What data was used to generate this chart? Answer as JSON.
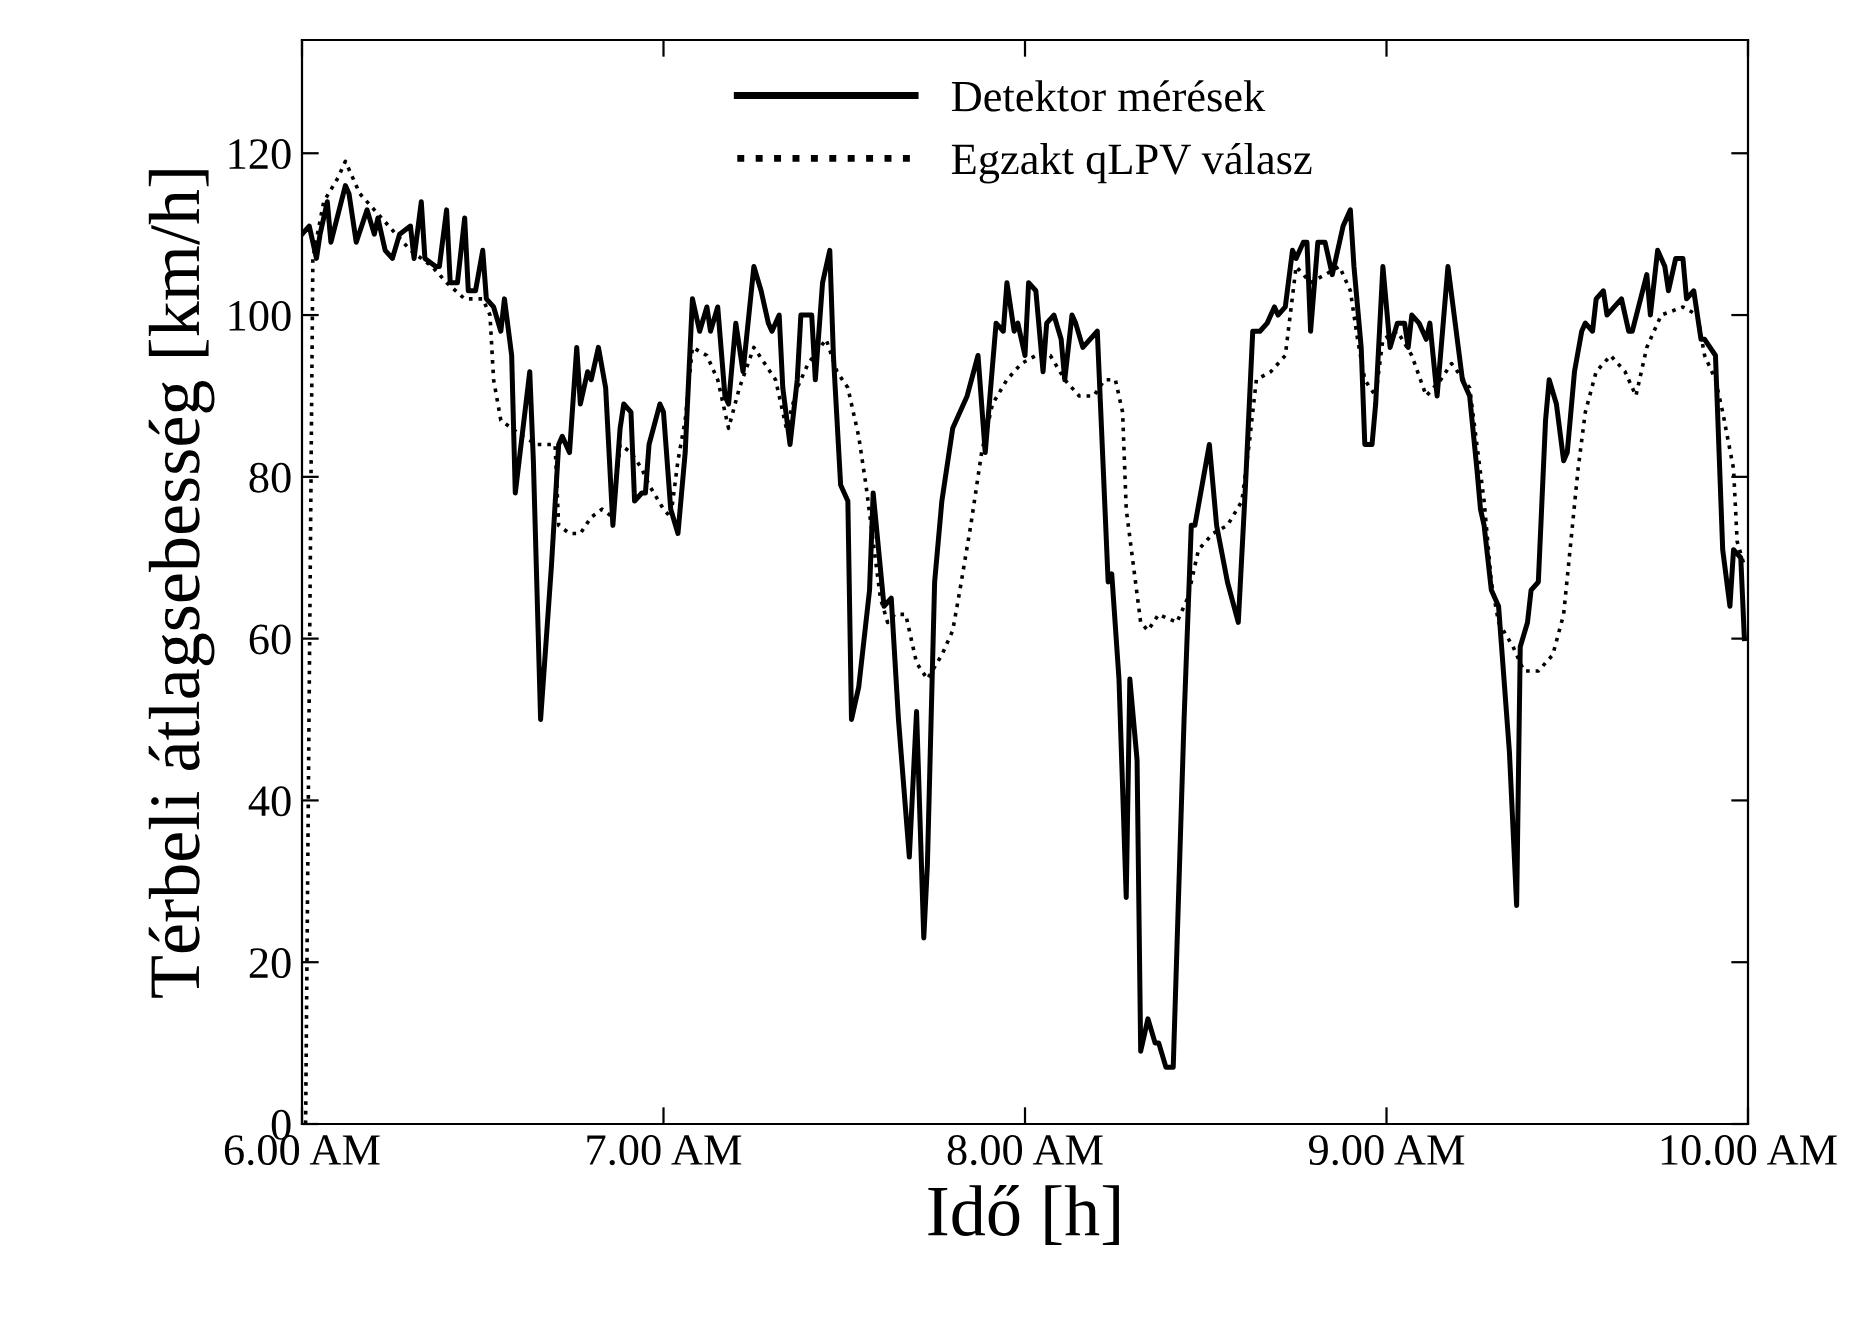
{
  "chart_data": {
    "type": "line",
    "xlabel": "Idő [h]",
    "ylabel": "Térbeli átlagsebesség [km/h]",
    "xlim": [
      6,
      10
    ],
    "xticks": [
      {
        "value": 6,
        "label": "6.00 AM"
      },
      {
        "value": 7,
        "label": "7.00 AM"
      },
      {
        "value": 8,
        "label": "8.00 AM"
      },
      {
        "value": 9,
        "label": "9.00 AM"
      },
      {
        "value": 10,
        "label": "10.00 AM"
      }
    ],
    "ylim": [
      0,
      134
    ],
    "yticks": [
      0,
      20,
      40,
      60,
      80,
      100,
      120
    ],
    "grid": false,
    "legend": "top",
    "marker": "none",
    "series": [
      {
        "name": "Detektor mérések",
        "color": "#000000",
        "line_style": "solid",
        "x": [
          6.0,
          6.02,
          6.04,
          6.05,
          6.07,
          6.08,
          6.12,
          6.13,
          6.15,
          6.18,
          6.2,
          6.21,
          6.23,
          6.25,
          6.27,
          6.3,
          6.31,
          6.33,
          6.34,
          6.37,
          6.38,
          6.4,
          6.41,
          6.43,
          6.45,
          6.46,
          6.48,
          6.5,
          6.51,
          6.53,
          6.55,
          6.56,
          6.58,
          6.59,
          6.63,
          6.64,
          6.66,
          6.69,
          6.71,
          6.72,
          6.74,
          6.76,
          6.77,
          6.79,
          6.8,
          6.82,
          6.84,
          6.86,
          6.88,
          6.89,
          6.91,
          6.92,
          6.94,
          6.95,
          6.96,
          6.99,
          7.0,
          7.02,
          7.04,
          7.06,
          7.08,
          7.1,
          7.12,
          7.13,
          7.15,
          7.17,
          7.18,
          7.2,
          7.22,
          7.25,
          7.27,
          7.29,
          7.3,
          7.32,
          7.33,
          7.35,
          7.37,
          7.38,
          7.41,
          7.42,
          7.44,
          7.46,
          7.47,
          7.49,
          7.51,
          7.52,
          7.54,
          7.57,
          7.58,
          7.61,
          7.63,
          7.65,
          7.68,
          7.7,
          7.72,
          7.73,
          7.75,
          7.77,
          7.8,
          7.84,
          7.87,
          7.89,
          7.92,
          7.94,
          7.95,
          7.97,
          7.98,
          8.0,
          8.01,
          8.03,
          8.05,
          8.06,
          8.08,
          8.1,
          8.11,
          8.13,
          8.14,
          8.16,
          8.2,
          8.23,
          8.24,
          8.26,
          8.28,
          8.29,
          8.31,
          8.32,
          8.34,
          8.36,
          8.37,
          8.39,
          8.41,
          8.44,
          8.46,
          8.47,
          8.51,
          8.53,
          8.56,
          8.59,
          8.61,
          8.63,
          8.65,
          8.67,
          8.69,
          8.7,
          8.72,
          8.74,
          8.75,
          8.77,
          8.78,
          8.79,
          8.81,
          8.83,
          8.85,
          8.88,
          8.9,
          8.91,
          8.93,
          8.94,
          8.96,
          8.97,
          8.99,
          9.01,
          9.03,
          9.05,
          9.06,
          9.07,
          9.09,
          9.11,
          9.12,
          9.14,
          9.17,
          9.21,
          9.23,
          9.25,
          9.26,
          9.27,
          9.29,
          9.31,
          9.32,
          9.34,
          9.36,
          9.37,
          9.39,
          9.4,
          9.42,
          9.44,
          9.45,
          9.47,
          9.49,
          9.5,
          9.52,
          9.54,
          9.55,
          9.57,
          9.58,
          9.6,
          9.61,
          9.63,
          9.65,
          9.67,
          9.68,
          9.72,
          9.73,
          9.75,
          9.77,
          9.78,
          9.8,
          9.82,
          9.83,
          9.85,
          9.87,
          9.88,
          9.91,
          9.93,
          9.95,
          9.96,
          9.98,
          9.99
        ],
        "values": [
          110,
          111,
          107,
          110,
          114,
          109,
          116,
          115,
          109,
          113,
          110,
          112,
          108,
          107,
          110,
          111,
          107,
          114,
          107,
          106,
          106,
          113,
          104,
          104,
          112,
          103,
          103,
          108,
          102,
          101,
          98,
          102,
          95,
          78,
          93,
          82,
          50,
          69,
          84,
          85,
          83,
          96,
          89,
          93,
          92,
          96,
          91,
          74,
          86,
          89,
          88,
          77,
          78,
          78,
          84,
          89,
          88,
          76,
          73,
          83,
          102,
          98,
          101,
          98,
          101,
          90,
          89,
          99,
          93,
          106,
          103,
          99,
          98,
          100,
          91,
          84,
          92,
          100,
          100,
          92,
          104,
          108,
          95,
          79,
          77,
          50,
          54,
          66,
          78,
          64,
          65,
          50,
          33,
          51,
          23,
          32,
          67,
          77,
          86,
          90,
          95,
          83,
          99,
          98,
          104,
          98,
          99,
          95,
          104,
          103,
          93,
          99,
          100,
          97,
          92,
          100,
          99,
          96,
          98,
          67,
          68,
          55,
          28,
          55,
          45,
          9,
          13,
          10,
          10,
          7,
          7,
          50,
          74,
          74,
          84,
          74,
          67,
          62,
          79,
          98,
          98,
          99,
          101,
          100,
          101,
          108,
          107,
          109,
          109,
          98,
          109,
          109,
          105,
          111,
          113,
          106,
          96,
          84,
          84,
          89,
          106,
          96,
          99,
          99,
          96,
          100,
          99,
          97,
          99,
          90,
          106,
          92,
          90,
          81,
          76,
          74,
          66,
          64,
          58,
          46,
          27,
          59,
          62,
          66,
          67,
          87,
          92,
          89,
          82,
          83,
          93,
          98,
          99,
          98,
          102,
          103,
          100,
          101,
          102,
          98,
          98,
          105,
          100,
          108,
          106,
          103,
          107,
          107,
          102,
          103,
          97,
          97,
          95,
          71,
          64,
          71,
          70,
          60
        ]
      },
      {
        "name": "Egzakt qLPV válasz",
        "color": "#000000",
        "line_style": "dotted",
        "x": [
          6.01,
          6.03,
          6.06,
          6.1,
          6.12,
          6.16,
          6.2,
          6.26,
          6.3,
          6.36,
          6.4,
          6.45,
          6.5,
          6.52,
          6.53,
          6.55,
          6.58,
          6.61,
          6.65,
          6.7,
          6.71,
          6.74,
          6.77,
          6.8,
          6.83,
          6.86,
          6.88,
          6.91,
          6.94,
          6.96,
          7.0,
          7.02,
          7.04,
          7.06,
          7.08,
          7.12,
          7.15,
          7.18,
          7.21,
          7.25,
          7.28,
          7.31,
          7.34,
          7.37,
          7.4,
          7.45,
          7.48,
          7.51,
          7.54,
          7.56,
          7.58,
          7.6,
          7.62,
          7.64,
          7.67,
          7.7,
          7.73,
          7.77,
          7.8,
          7.82,
          7.85,
          7.88,
          7.91,
          7.95,
          7.99,
          8.03,
          8.07,
          8.11,
          8.15,
          8.19,
          8.22,
          8.25,
          8.27,
          8.28,
          8.3,
          8.32,
          8.34,
          8.37,
          8.42,
          8.45,
          8.48,
          8.52,
          8.56,
          8.6,
          8.62,
          8.64,
          8.68,
          8.72,
          8.75,
          8.79,
          8.83,
          8.87,
          8.9,
          8.92,
          8.94,
          8.97,
          8.99,
          9.03,
          9.07,
          9.11,
          9.15,
          9.18,
          9.23,
          9.25,
          9.27,
          9.29,
          9.31,
          9.35,
          9.38,
          9.42,
          9.46,
          9.49,
          9.51,
          9.53,
          9.55,
          9.58,
          9.62,
          9.66,
          9.69,
          9.72,
          9.76,
          9.82,
          9.86,
          9.88,
          9.91,
          9.93,
          9.96,
          9.97,
          9.99
        ],
        "values": [
          0,
          107,
          114,
          117,
          119,
          115,
          113,
          110,
          108,
          106,
          104,
          102,
          102,
          100,
          92,
          87,
          86,
          85,
          84,
          84,
          74,
          73,
          73,
          75,
          76,
          75,
          84,
          83,
          81,
          79,
          76,
          75,
          82,
          87,
          96,
          95,
          92,
          86,
          91,
          96,
          94,
          92,
          86,
          91,
          94,
          97,
          93,
          91,
          85,
          79,
          72,
          65,
          62,
          63,
          63,
          57,
          55,
          58,
          61,
          66,
          74,
          83,
          89,
          92,
          94,
          95,
          95,
          92,
          90,
          90,
          92,
          92,
          88,
          76,
          69,
          62,
          61,
          63,
          62,
          65,
          71,
          73,
          74,
          77,
          84,
          92,
          93,
          95,
          106,
          104,
          105,
          106,
          103,
          97,
          92,
          90,
          97,
          98,
          95,
          90,
          92,
          94,
          91,
          84,
          77,
          67,
          62,
          59,
          56,
          56,
          58,
          63,
          72,
          81,
          88,
          93,
          95,
          93,
          90,
          96,
          100,
          101,
          100,
          95,
          92,
          88,
          81,
          72,
          69
        ]
      }
    ]
  }
}
